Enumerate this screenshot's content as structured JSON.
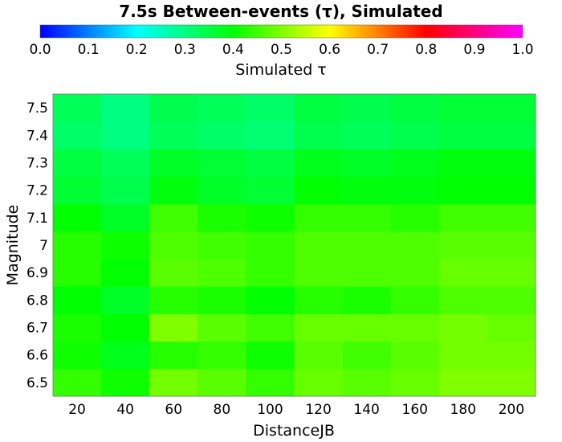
{
  "chart_data": {
    "type": "heatmap",
    "title": "7.5s Between-events (τ), Simulated",
    "colorbar": {
      "label": "Simulated τ",
      "range": [
        0.0,
        1.0
      ],
      "ticks": [
        "0.0",
        "0.1",
        "0.2",
        "0.3",
        "0.4",
        "0.5",
        "0.6",
        "0.7",
        "0.8",
        "0.9",
        "1.0"
      ],
      "colormap": "rainbow",
      "stops": [
        "#0000ff",
        "#00ffff",
        "#00ff00",
        "#ffff00",
        "#ff0000",
        "#ff00ff"
      ]
    },
    "xlabel": "DistanceJB",
    "ylabel": "Magnitude",
    "x": [
      20,
      40,
      60,
      80,
      100,
      120,
      140,
      160,
      180,
      200
    ],
    "y": [
      6.5,
      6.6,
      6.7,
      6.8,
      6.9,
      7.0,
      7.1,
      7.2,
      7.3,
      7.4,
      7.5
    ],
    "xticks": [
      "20",
      "40",
      "60",
      "80",
      "100",
      "120",
      "140",
      "160",
      "180",
      "200"
    ],
    "yticks": [
      "6.5",
      "6.6",
      "6.7",
      "6.8",
      "6.9",
      "7",
      "7.1",
      "7.2",
      "7.3",
      "7.4",
      "7.5"
    ],
    "values": [
      [
        0.44,
        0.41,
        0.49,
        0.47,
        0.44,
        0.48,
        0.47,
        0.48,
        0.5,
        0.5
      ],
      [
        0.41,
        0.38,
        0.43,
        0.44,
        0.41,
        0.47,
        0.45,
        0.47,
        0.49,
        0.49
      ],
      [
        0.42,
        0.4,
        0.5,
        0.47,
        0.45,
        0.48,
        0.48,
        0.48,
        0.49,
        0.48
      ],
      [
        0.4,
        0.37,
        0.43,
        0.42,
        0.4,
        0.43,
        0.42,
        0.44,
        0.46,
        0.46
      ],
      [
        0.43,
        0.4,
        0.47,
        0.46,
        0.44,
        0.46,
        0.46,
        0.46,
        0.48,
        0.48
      ],
      [
        0.43,
        0.41,
        0.46,
        0.45,
        0.44,
        0.46,
        0.46,
        0.46,
        0.47,
        0.47
      ],
      [
        0.4,
        0.37,
        0.45,
        0.42,
        0.41,
        0.44,
        0.44,
        0.43,
        0.45,
        0.45
      ],
      [
        0.36,
        0.34,
        0.39,
        0.37,
        0.36,
        0.4,
        0.39,
        0.39,
        0.4,
        0.4
      ],
      [
        0.35,
        0.33,
        0.37,
        0.36,
        0.35,
        0.38,
        0.37,
        0.38,
        0.39,
        0.39
      ],
      [
        0.32,
        0.3,
        0.33,
        0.32,
        0.31,
        0.34,
        0.33,
        0.34,
        0.35,
        0.35
      ],
      [
        0.33,
        0.3,
        0.34,
        0.33,
        0.32,
        0.35,
        0.34,
        0.35,
        0.36,
        0.36
      ]
    ]
  }
}
